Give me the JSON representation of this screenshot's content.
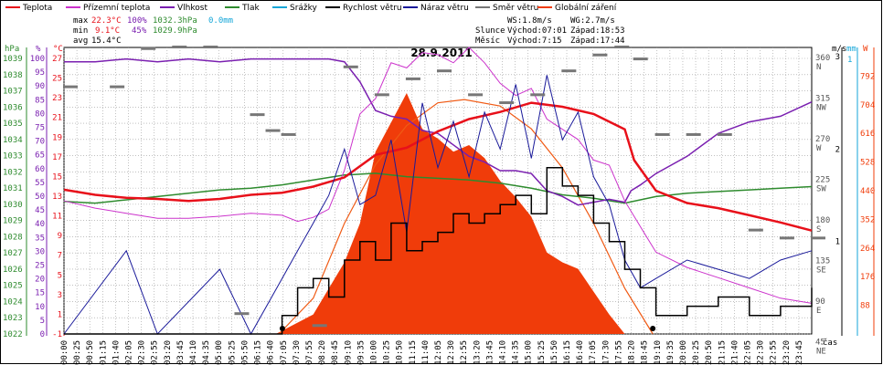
{
  "chart_data": {
    "type": "line",
    "title": "28.9.2011",
    "legend": [
      {
        "name": "Teplota",
        "color": "#e8101a"
      },
      {
        "name": "Přízemní teplota",
        "color": "#cc33cc"
      },
      {
        "name": "Vlhkost",
        "color": "#7a1fb0"
      },
      {
        "name": "Tlak",
        "color": "#2e8b2e"
      },
      {
        "name": "Srážky",
        "color": "#14a6d8"
      },
      {
        "name": "Rychlost větru",
        "color": "#000000"
      },
      {
        "name": "Náraz větru",
        "color": "#1a1a9a"
      },
      {
        "name": "Směr větru",
        "color": "#777777"
      },
      {
        "name": "Globální záření",
        "color": "#f03c0a"
      }
    ],
    "stats": {
      "max_label": "max",
      "max_temp": "22.3°C",
      "max_hum": "100%",
      "max_press": "1032.3hPa",
      "max_rain": "0.0mm",
      "min_label": "min",
      "min_temp": "9.1°C",
      "min_hum": "45%",
      "min_press": "1029.9hPa",
      "avg_label": "avg",
      "avg_temp": "15.4°C"
    },
    "info": {
      "ws": "WS:1.8m/s",
      "wg": "WG:2.7m/s",
      "sun_label": "Slunce",
      "sunrise": "Východ:07:01",
      "sunset": "Západ:18:53",
      "moon_label": "Měsíc",
      "moonrise": "Východ:7:15",
      "moonset": "Západ:17:44"
    },
    "axes": {
      "hpa_title": "hPa",
      "pct_title": "%",
      "c_title": "°C",
      "hpa_ticks": [
        "1039",
        "1038",
        "1037",
        "1036",
        "1035",
        "1034",
        "1033",
        "1032",
        "1031",
        "1030",
        "1029",
        "1028",
        "1027",
        "1026",
        "1025",
        "1024",
        "1023",
        "1022"
      ],
      "pct_ticks": [
        "100",
        "95",
        "90",
        "85",
        "80",
        "75",
        "70",
        "65",
        "60",
        "55",
        "50",
        "45",
        "40",
        "35",
        "30",
        "25",
        "20",
        "15",
        "10",
        "5",
        "0"
      ],
      "c_ticks": [
        "27",
        "25",
        "23",
        "21",
        "19",
        "17",
        "15",
        "13",
        "11",
        "9",
        "7",
        "5",
        "3",
        "1",
        "-1"
      ],
      "ms_title": "m/s",
      "mm_title": "mm",
      "w_title": "W",
      "dir_ticks": [
        {
          "deg": "360",
          "dir": "N"
        },
        {
          "deg": "315",
          "dir": "NW"
        },
        {
          "deg": "270",
          "dir": "W"
        },
        {
          "deg": "225",
          "dir": "SW"
        },
        {
          "deg": "180",
          "dir": "S"
        },
        {
          "deg": "135",
          "dir": "SE"
        },
        {
          "deg": "90",
          "dir": "E"
        },
        {
          "deg": "45",
          "dir": "NE"
        }
      ],
      "ms_ticks": [
        "3",
        "2",
        "1"
      ],
      "mm_ticks": [
        "1"
      ],
      "w_ticks": [
        "792",
        "704",
        "616",
        "528",
        "440",
        "352",
        "264",
        "176",
        "88"
      ],
      "time_label": "čas",
      "x_ticks": [
        "00:00",
        "00:25",
        "00:50",
        "01:15",
        "01:40",
        "02:05",
        "02:30",
        "02:55",
        "03:20",
        "03:45",
        "04:10",
        "04:35",
        "05:00",
        "05:25",
        "05:50",
        "06:15",
        "06:40",
        "07:05",
        "07:30",
        "07:55",
        "08:20",
        "08:45",
        "09:10",
        "09:35",
        "10:00",
        "10:25",
        "10:50",
        "11:15",
        "11:40",
        "12:05",
        "12:30",
        "12:55",
        "13:20",
        "13:45",
        "14:10",
        "14:35",
        "15:00",
        "15:25",
        "15:50",
        "16:15",
        "16:40",
        "17:05",
        "17:30",
        "17:55",
        "18:20",
        "18:45",
        "19:10",
        "19:35",
        "20:00",
        "20:25",
        "20:50",
        "21:15",
        "21:40",
        "22:05",
        "22:30",
        "22:55",
        "23:20",
        "23:45"
      ]
    },
    "series": {
      "teplota": {
        "x_hours": [
          0,
          1,
          2,
          3,
          4,
          5,
          6,
          7,
          8,
          9,
          10,
          11,
          12,
          13,
          14,
          15,
          16,
          17,
          18,
          18.3,
          19,
          20,
          21,
          22,
          23,
          24
        ],
        "y_degC": [
          13.1,
          12.6,
          12.3,
          12.2,
          12.0,
          12.2,
          12.6,
          12.8,
          13.4,
          14.3,
          16.5,
          17.2,
          18.8,
          20.0,
          20.7,
          21.6,
          21.2,
          20.5,
          19.0,
          16.0,
          13.0,
          11.8,
          11.3,
          10.6,
          9.9,
          9.1
        ]
      },
      "prizemni_teplota": {
        "x_hours": [
          0,
          1,
          2,
          3,
          4,
          5,
          6,
          6.5,
          7,
          7.5,
          8,
          8.5,
          9,
          9.5,
          10,
          10.5,
          11,
          11.5,
          12,
          12.5,
          13,
          13.5,
          14,
          14.5,
          15,
          15.5,
          16,
          16.5,
          17,
          17.5,
          18,
          18.5,
          19,
          20,
          21,
          22,
          23,
          24
        ],
        "y_degC": [
          12.0,
          11.3,
          10.8,
          10.3,
          10.3,
          10.5,
          10.8,
          10.7,
          10.6,
          10.0,
          10.4,
          11.2,
          15.0,
          20.5,
          22.0,
          25.5,
          25.0,
          26.5,
          26.3,
          25.5,
          27.0,
          25.5,
          23.5,
          22.3,
          23.0,
          20.0,
          19.0,
          18.0,
          16.0,
          15.5,
          12.0,
          9.5,
          7.0,
          5.5,
          4.5,
          3.5,
          2.5,
          2.0
        ]
      },
      "vlhkost": {
        "x_hours": [
          0,
          1,
          2,
          3,
          4,
          5,
          6,
          7,
          7.5,
          8,
          8.5,
          9,
          9.5,
          10,
          10.5,
          11,
          11.5,
          12,
          12.5,
          13,
          13.5,
          14,
          14.5,
          15,
          15.5,
          16,
          16.5,
          17,
          17.5,
          18,
          18.2,
          18.5,
          19,
          20,
          21,
          22,
          23,
          24
        ],
        "y_pct": [
          95,
          95,
          96,
          95,
          96,
          95,
          96,
          96,
          96,
          96,
          96,
          95,
          88,
          78,
          76,
          75,
          71,
          70,
          66,
          62,
          60,
          57,
          57,
          56,
          50,
          48,
          45,
          46,
          47,
          46,
          50,
          52,
          56,
          62,
          70,
          74,
          76,
          81
        ]
      },
      "tlak": {
        "x_hours": [
          0,
          1,
          2,
          3,
          4,
          5,
          6,
          7,
          8,
          9,
          10,
          11,
          12,
          13,
          14,
          15,
          16,
          17,
          18,
          19,
          20,
          21,
          22,
          23,
          24
        ],
        "y_hpa": [
          1030.0,
          1029.9,
          1030.1,
          1030.3,
          1030.5,
          1030.7,
          1030.8,
          1031.0,
          1031.3,
          1031.6,
          1031.7,
          1031.5,
          1031.4,
          1031.3,
          1031.1,
          1030.8,
          1030.4,
          1030.2,
          1029.9,
          1030.3,
          1030.5,
          1030.6,
          1030.7,
          1030.8,
          1030.9
        ]
      },
      "rychlost_vetru": {
        "x_hours": [
          0,
          5,
          7,
          7.5,
          8,
          8.5,
          9,
          9.5,
          10,
          10.5,
          11,
          11.5,
          12,
          12.5,
          13,
          13.5,
          14,
          14.5,
          15,
          15.5,
          16,
          16.5,
          17,
          17.5,
          18,
          18.5,
          19,
          20,
          21,
          22,
          23,
          24
        ],
        "y_ms": [
          0.0,
          0.0,
          0.2,
          0.5,
          0.6,
          0.4,
          0.8,
          1.0,
          0.8,
          1.2,
          0.9,
          1.0,
          1.1,
          1.3,
          1.2,
          1.3,
          1.4,
          1.5,
          1.3,
          1.8,
          1.6,
          1.5,
          1.2,
          1.0,
          0.7,
          0.5,
          0.2,
          0.3,
          0.4,
          0.2,
          0.3,
          0.5
        ]
      },
      "naraz_vetru": {
        "x_hours": [
          0,
          2,
          3,
          5,
          6,
          7,
          7.5,
          8,
          8.5,
          9,
          9.5,
          10,
          10.5,
          11,
          11.5,
          12,
          12.5,
          13,
          13.5,
          14,
          14.5,
          15,
          15.5,
          16,
          16.5,
          17,
          17.5,
          18,
          18.5,
          19,
          20,
          21,
          22,
          23,
          24
        ],
        "y_ms": [
          0.0,
          0.9,
          0.0,
          0.7,
          0.0,
          0.6,
          0.9,
          1.2,
          1.5,
          2.0,
          1.4,
          1.5,
          2.1,
          1.1,
          2.5,
          1.8,
          2.3,
          1.7,
          2.4,
          2.0,
          2.7,
          1.9,
          2.8,
          2.1,
          2.4,
          1.7,
          1.4,
          0.8,
          0.5,
          0.6,
          0.8,
          0.7,
          0.6,
          0.8,
          0.9
        ]
      },
      "globalni_zareni": {
        "x_hours": [
          6.8,
          8,
          9,
          9.5,
          10,
          10.5,
          11,
          11.5,
          12,
          12.5,
          13,
          13.5,
          14,
          14.5,
          15,
          15.5,
          16,
          16.5,
          17,
          17.5,
          18
        ],
        "y_w": [
          0,
          60,
          220,
          340,
          560,
          650,
          740,
          630,
          600,
          560,
          580,
          540,
          470,
          420,
          360,
          250,
          220,
          200,
          130,
          60,
          0
        ]
      },
      "clear_sky_radiation": {
        "x_hours": [
          6.9,
          8,
          9,
          10,
          11,
          12,
          12.85,
          14,
          15,
          16,
          17,
          18,
          18.9
        ],
        "y_w": [
          0,
          110,
          340,
          520,
          640,
          710,
          720,
          700,
          630,
          510,
          340,
          140,
          0
        ]
      },
      "smer_vetru": {
        "x_hours": [
          0,
          1.5,
          2.5,
          3.5,
          4.5,
          5.5,
          6,
          6.5,
          7,
          8,
          9,
          10,
          11,
          12,
          13,
          14,
          15,
          16,
          17,
          17.7,
          18.3,
          19,
          20,
          21,
          22,
          23,
          24
        ],
        "y_deg": [
          310,
          310,
          358,
          360,
          360,
          25,
          275,
          255,
          250,
          10,
          335,
          300,
          320,
          330,
          300,
          290,
          300,
          330,
          350,
          360,
          345,
          250,
          250,
          250,
          130,
          120,
          120
        ]
      }
    },
    "x_range_hours": [
      0,
      24
    ],
    "y_ranges": {
      "degC": [
        -1,
        27
      ],
      "pct": [
        0,
        100
      ],
      "hpa": [
        1022,
        1039.3
      ],
      "ms": [
        0,
        3.1
      ],
      "w": [
        0,
        880
      ],
      "deg": [
        0,
        360
      ]
    }
  }
}
